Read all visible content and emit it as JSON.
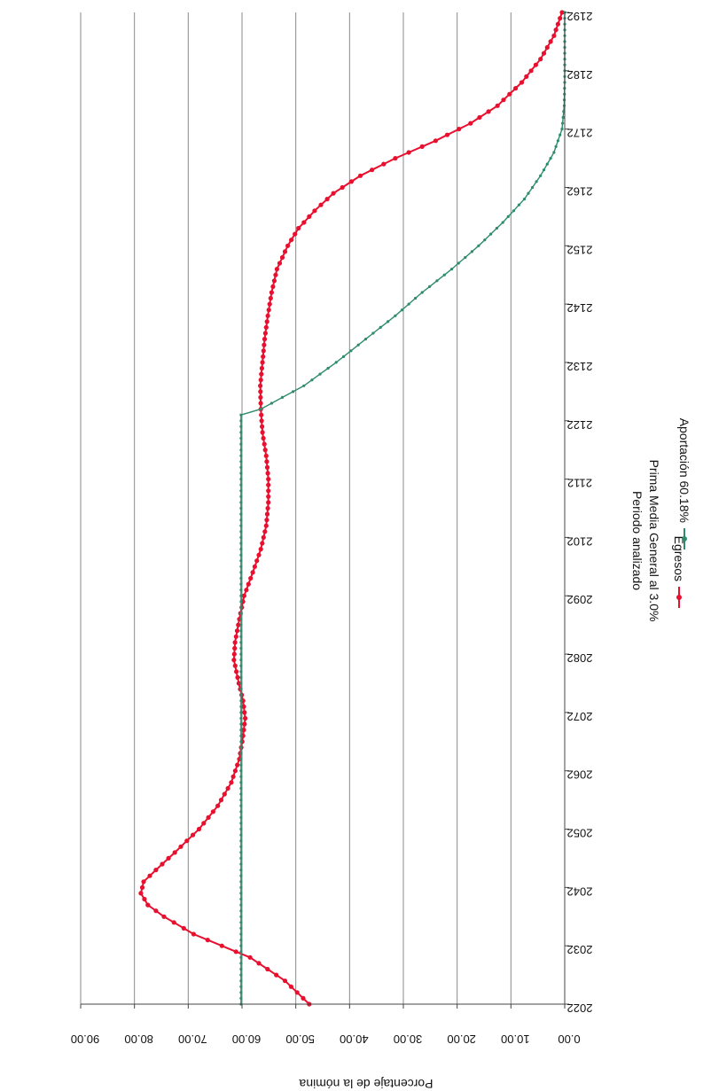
{
  "chart_data": {
    "type": "line",
    "title": "",
    "caption_line1": "Periodo analizado",
    "caption_line2": "Prima Media General al 3.0%",
    "xlabel": "",
    "ylabel": "Porcentaje de la nómina",
    "x_ticks": [
      "2022",
      "2032",
      "2042",
      "2052",
      "2062",
      "2072",
      "2082",
      "2092",
      "2102",
      "2112",
      "2122",
      "2132",
      "2142",
      "2152",
      "2162",
      "2172",
      "2182",
      "2192"
    ],
    "y_ticks": [
      "0.00",
      "10.00",
      "20.00",
      "30.00",
      "40.00",
      "50.00",
      "60.00",
      "70.00",
      "80.00",
      "90.00"
    ],
    "xlim": [
      2022,
      2192
    ],
    "ylim": [
      0,
      90
    ],
    "grid": true,
    "legend_position": "bottom",
    "series": [
      {
        "name": "Egresos",
        "color": "#e8102e",
        "marker": "circle",
        "points": [
          [
            2022,
            47.5
          ],
          [
            2026,
            52.0
          ],
          [
            2030,
            58.5
          ],
          [
            2034,
            69.0
          ],
          [
            2037,
            74.5
          ],
          [
            2039,
            77.5
          ],
          [
            2041,
            78.8
          ],
          [
            2043,
            78.3
          ],
          [
            2045,
            76.0
          ],
          [
            2048,
            72.5
          ],
          [
            2052,
            68.0
          ],
          [
            2056,
            64.5
          ],
          [
            2060,
            62.0
          ],
          [
            2064,
            60.5
          ],
          [
            2068,
            59.8
          ],
          [
            2071,
            59.4
          ],
          [
            2074,
            59.8
          ],
          [
            2077,
            60.6
          ],
          [
            2081,
            61.5
          ],
          [
            2084,
            61.3
          ],
          [
            2088,
            60.5
          ],
          [
            2092,
            59.6
          ],
          [
            2096,
            58.0
          ],
          [
            2100,
            56.5
          ],
          [
            2104,
            55.5
          ],
          [
            2108,
            55.1
          ],
          [
            2112,
            55.1
          ],
          [
            2116,
            55.5
          ],
          [
            2120,
            56.2
          ],
          [
            2124,
            56.5
          ],
          [
            2128,
            56.6
          ],
          [
            2132,
            56.2
          ],
          [
            2136,
            55.8
          ],
          [
            2140,
            55.2
          ],
          [
            2144,
            54.5
          ],
          [
            2148,
            53.5
          ],
          [
            2152,
            51.5
          ],
          [
            2155,
            49.5
          ],
          [
            2158,
            46.5
          ],
          [
            2161,
            43.0
          ],
          [
            2164,
            38.0
          ],
          [
            2167,
            31.5
          ],
          [
            2170,
            24.0
          ],
          [
            2173,
            17.5
          ],
          [
            2176,
            12.5
          ],
          [
            2180,
            8.0
          ],
          [
            2184,
            4.5
          ],
          [
            2188,
            2.0
          ],
          [
            2192,
            0.5
          ]
        ]
      },
      {
        "name": "Aportación 60.18%",
        "color": "#2e8b6e",
        "marker": "dot",
        "points": [
          [
            2022,
            60.18
          ],
          [
            2123,
            60.18
          ],
          [
            2124,
            56.5
          ],
          [
            2126,
            52.5
          ],
          [
            2128,
            48.5
          ],
          [
            2132,
            42.5
          ],
          [
            2136,
            37.0
          ],
          [
            2140,
            31.5
          ],
          [
            2144,
            26.5
          ],
          [
            2148,
            21.0
          ],
          [
            2152,
            16.0
          ],
          [
            2156,
            11.5
          ],
          [
            2160,
            7.5
          ],
          [
            2164,
            4.5
          ],
          [
            2168,
            2.0
          ],
          [
            2172,
            0.5
          ],
          [
            2176,
            0.1
          ],
          [
            2180,
            0.0
          ],
          [
            2184,
            0.0
          ],
          [
            2188,
            0.0
          ],
          [
            2192,
            0.0
          ]
        ]
      }
    ]
  }
}
